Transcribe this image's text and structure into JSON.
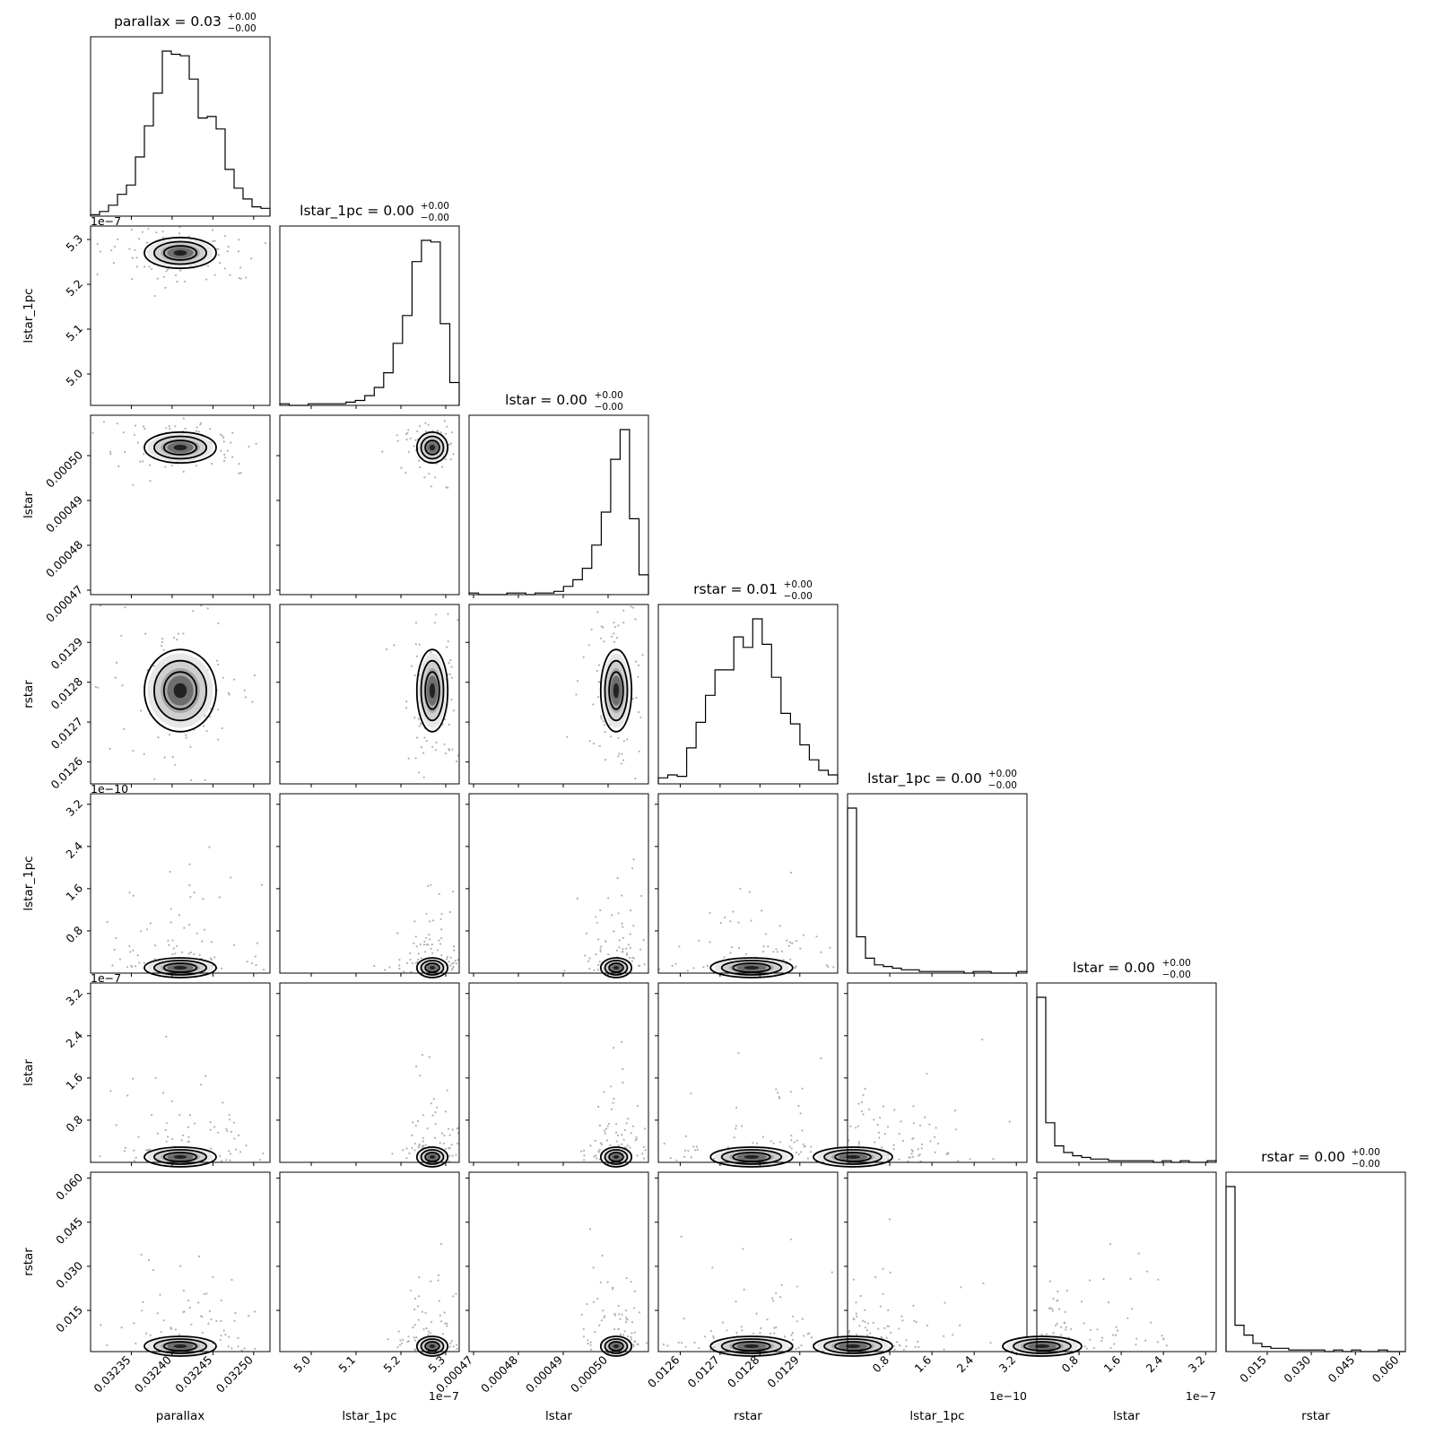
{
  "chart_data": {
    "type": "corner",
    "parameters": [
      "parallax",
      "lstar_1pc",
      "lstar",
      "rstar",
      "lstar_1pc",
      "lstar",
      "rstar"
    ],
    "titles": [
      {
        "text": "parallax = 0.03",
        "sup": "+0.00",
        "sub": "−0.00"
      },
      {
        "text": "lstar_1pc = 0.00",
        "sup": "+0.00",
        "sub": "−0.00"
      },
      {
        "text": "lstar = 0.00",
        "sup": "+0.00",
        "sub": "−0.00"
      },
      {
        "text": "rstar = 0.01",
        "sup": "+0.00",
        "sub": "−0.00"
      },
      {
        "text": "lstar_1pc = 0.00",
        "sup": "+0.00",
        "sub": "−0.00"
      },
      {
        "text": "lstar = 0.00",
        "sup": "+0.00",
        "sub": "−0.00"
      },
      {
        "text": "rstar = 0.00",
        "sup": "+0.00",
        "sub": "−0.00"
      }
    ],
    "axes": [
      {
        "label": "parallax",
        "min": 0.0323,
        "max": 0.03252,
        "ticks": [
          0.03235,
          0.0324,
          0.03245,
          0.0325
        ],
        "tick_labels": [
          "0.03235",
          "0.03240",
          "0.03245",
          "0.03250"
        ],
        "offset": ""
      },
      {
        "label": "lstar_1pc",
        "min": 4.93,
        "max": 5.33,
        "ticks": [
          5.0,
          5.1,
          5.2,
          5.3
        ],
        "tick_labels": [
          "5.0",
          "5.1",
          "5.2",
          "5.3"
        ],
        "offset": "1e−7"
      },
      {
        "label": "lstar",
        "min": 0.000469,
        "max": 0.000509,
        "ticks": [
          0.00047,
          0.00048,
          0.00049,
          0.0005
        ],
        "tick_labels": [
          "0.00047",
          "0.00048",
          "0.00049",
          "0.00050"
        ],
        "offset": ""
      },
      {
        "label": "rstar",
        "min": 0.012545,
        "max": 0.012995,
        "ticks": [
          0.0126,
          0.0127,
          0.0128,
          0.0129
        ],
        "tick_labels": [
          "0.0126",
          "0.0127",
          "0.0128",
          "0.0129"
        ],
        "offset": ""
      },
      {
        "label": "lstar_1pc",
        "min": 0.0,
        "max": 3.4,
        "ticks": [
          0.8,
          1.6,
          2.4,
          3.2
        ],
        "tick_labels": [
          "0.8",
          "1.6",
          "2.4",
          "3.2"
        ],
        "offset": "1e−10"
      },
      {
        "label": "lstar",
        "min": 0.0,
        "max": 3.4,
        "ticks": [
          0.8,
          1.6,
          2.4,
          3.2
        ],
        "tick_labels": [
          "0.8",
          "1.6",
          "2.4",
          "3.2"
        ],
        "offset": "1e−7"
      },
      {
        "label": "rstar",
        "min": 0.001,
        "max": 0.062,
        "ticks": [
          0.015,
          0.03,
          0.045,
          0.06
        ],
        "tick_labels": [
          "0.015",
          "0.030",
          "0.045",
          "0.060"
        ],
        "offset": ""
      }
    ],
    "histograms": [
      [
        1,
        3,
        7,
        14,
        20,
        38,
        58,
        79,
        106,
        104,
        103,
        88,
        63,
        64,
        56,
        30,
        18,
        11,
        6,
        5
      ],
      [
        1,
        0,
        0,
        1,
        1,
        1,
        1,
        2,
        3,
        6,
        11,
        20,
        38,
        55,
        88,
        101,
        100,
        50,
        14
      ],
      [
        1,
        0,
        0,
        0,
        1,
        1,
        0,
        1,
        1,
        2,
        5,
        9,
        16,
        30,
        50,
        82,
        100,
        46,
        12
      ],
      [
        4,
        6,
        5,
        24,
        41,
        59,
        76,
        76,
        98,
        91,
        110,
        93,
        71,
        47,
        40,
        26,
        16,
        9,
        6
      ],
      [
        100,
        22,
        9,
        5,
        4,
        3,
        2,
        2,
        1,
        1,
        1,
        1,
        1,
        0,
        1,
        1,
        0,
        0,
        0,
        1
      ],
      [
        100,
        24,
        10,
        6,
        4,
        3,
        2,
        2,
        1,
        1,
        1,
        1,
        1,
        0,
        1,
        0,
        1,
        0,
        0,
        1
      ],
      [
        100,
        16,
        10,
        5,
        3,
        2,
        2,
        1,
        1,
        1,
        1,
        0,
        1,
        0,
        1,
        0,
        0,
        1,
        0,
        0
      ]
    ]
  }
}
